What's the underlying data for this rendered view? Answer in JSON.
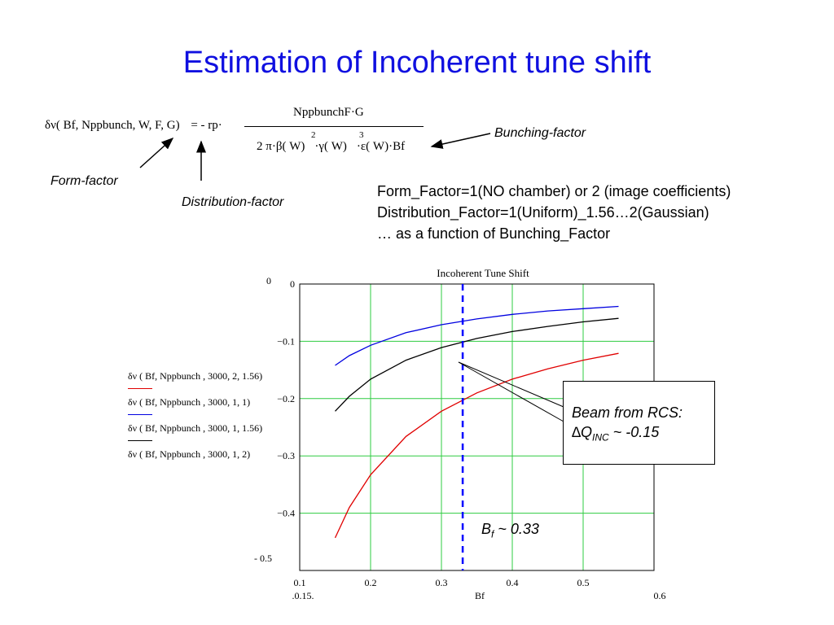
{
  "slide": {
    "title": "Estimation of Incoherent tune shift",
    "formula": {
      "lhs": "δν( Bf, Nppbunch, W, F, G)",
      "eq": "= - rp·",
      "numerator": "NppbunchF·G",
      "denominator": "2 π·β( W)",
      "sup1": "2",
      "den2": "·γ( W)",
      "sup2": "3",
      "den3": "·ε( W)·Bf"
    },
    "labels": {
      "form_factor": "Form-factor",
      "distribution_factor": "Distribution-factor",
      "bunching_factor": "Bunching-factor"
    },
    "notes": [
      "Form_Factor=1(NO chamber) or 2 (image coefficients)",
      "Distribution_Factor=1(Uniform)_1.56…2(Gaussian)",
      "… as a function  of Bunching_Factor"
    ],
    "callout": {
      "line1": "Beam from RCS:",
      "line2_delta": "∆Q",
      "line2_sub": "INC",
      "line2_rest": " ~ -0.15"
    },
    "bf_marker": {
      "prefix": "B",
      "sub": "f",
      "rest": " ~ 0.33"
    },
    "outer_axis": {
      "y_top": "0",
      "y_bottom": "- 0.5",
      "x_left": ".0.15.",
      "x_right": "0.6"
    }
  },
  "chart_data": {
    "type": "line",
    "title": "Incoherent Tune Shift",
    "xlabel": "Bf",
    "ylabel": "",
    "xlim": [
      0.1,
      0.6
    ],
    "ylim": [
      -0.5,
      0
    ],
    "xticks": [
      "0.1",
      "0.2",
      "0.3",
      "0.4",
      "0.5"
    ],
    "yticks": [
      "0",
      "−0.1",
      "−0.2",
      "−0.3",
      "−0.4"
    ],
    "grid": true,
    "vline": {
      "x": 0.33,
      "color": "#0000ff",
      "style": "dashed"
    },
    "series": [
      {
        "name": "δν ( Bf, Nppbunch , 3000, 2, 1.56)",
        "color": "#e00000",
        "x": [
          0.15,
          0.17,
          0.2,
          0.25,
          0.3,
          0.35,
          0.4,
          0.45,
          0.5,
          0.55
        ],
        "y": [
          -0.443,
          -0.39,
          -0.333,
          -0.266,
          -0.222,
          -0.19,
          -0.166,
          -0.148,
          -0.133,
          -0.121
        ]
      },
      {
        "name": "δν ( Bf, Nppbunch , 3000, 1, 1)",
        "color": "#0000e0",
        "x": [
          0.15,
          0.17,
          0.2,
          0.25,
          0.3,
          0.35,
          0.4,
          0.45,
          0.5,
          0.55
        ],
        "y": [
          -0.142,
          -0.125,
          -0.107,
          -0.085,
          -0.071,
          -0.061,
          -0.053,
          -0.047,
          -0.043,
          -0.039
        ]
      },
      {
        "name": "δν ( Bf, Nppbunch , 3000, 1, 1.56)",
        "color": "#000000",
        "x": [
          0.15,
          0.17,
          0.2,
          0.25,
          0.3,
          0.35,
          0.4,
          0.45,
          0.5,
          0.55
        ],
        "y": [
          -0.222,
          -0.196,
          -0.166,
          -0.133,
          -0.111,
          -0.095,
          -0.083,
          -0.074,
          -0.066,
          -0.06
        ]
      },
      {
        "name": "δν ( Bf, Nppbunch , 3000, 1, 2)",
        "color": "#000000",
        "x": [],
        "y": []
      }
    ]
  }
}
